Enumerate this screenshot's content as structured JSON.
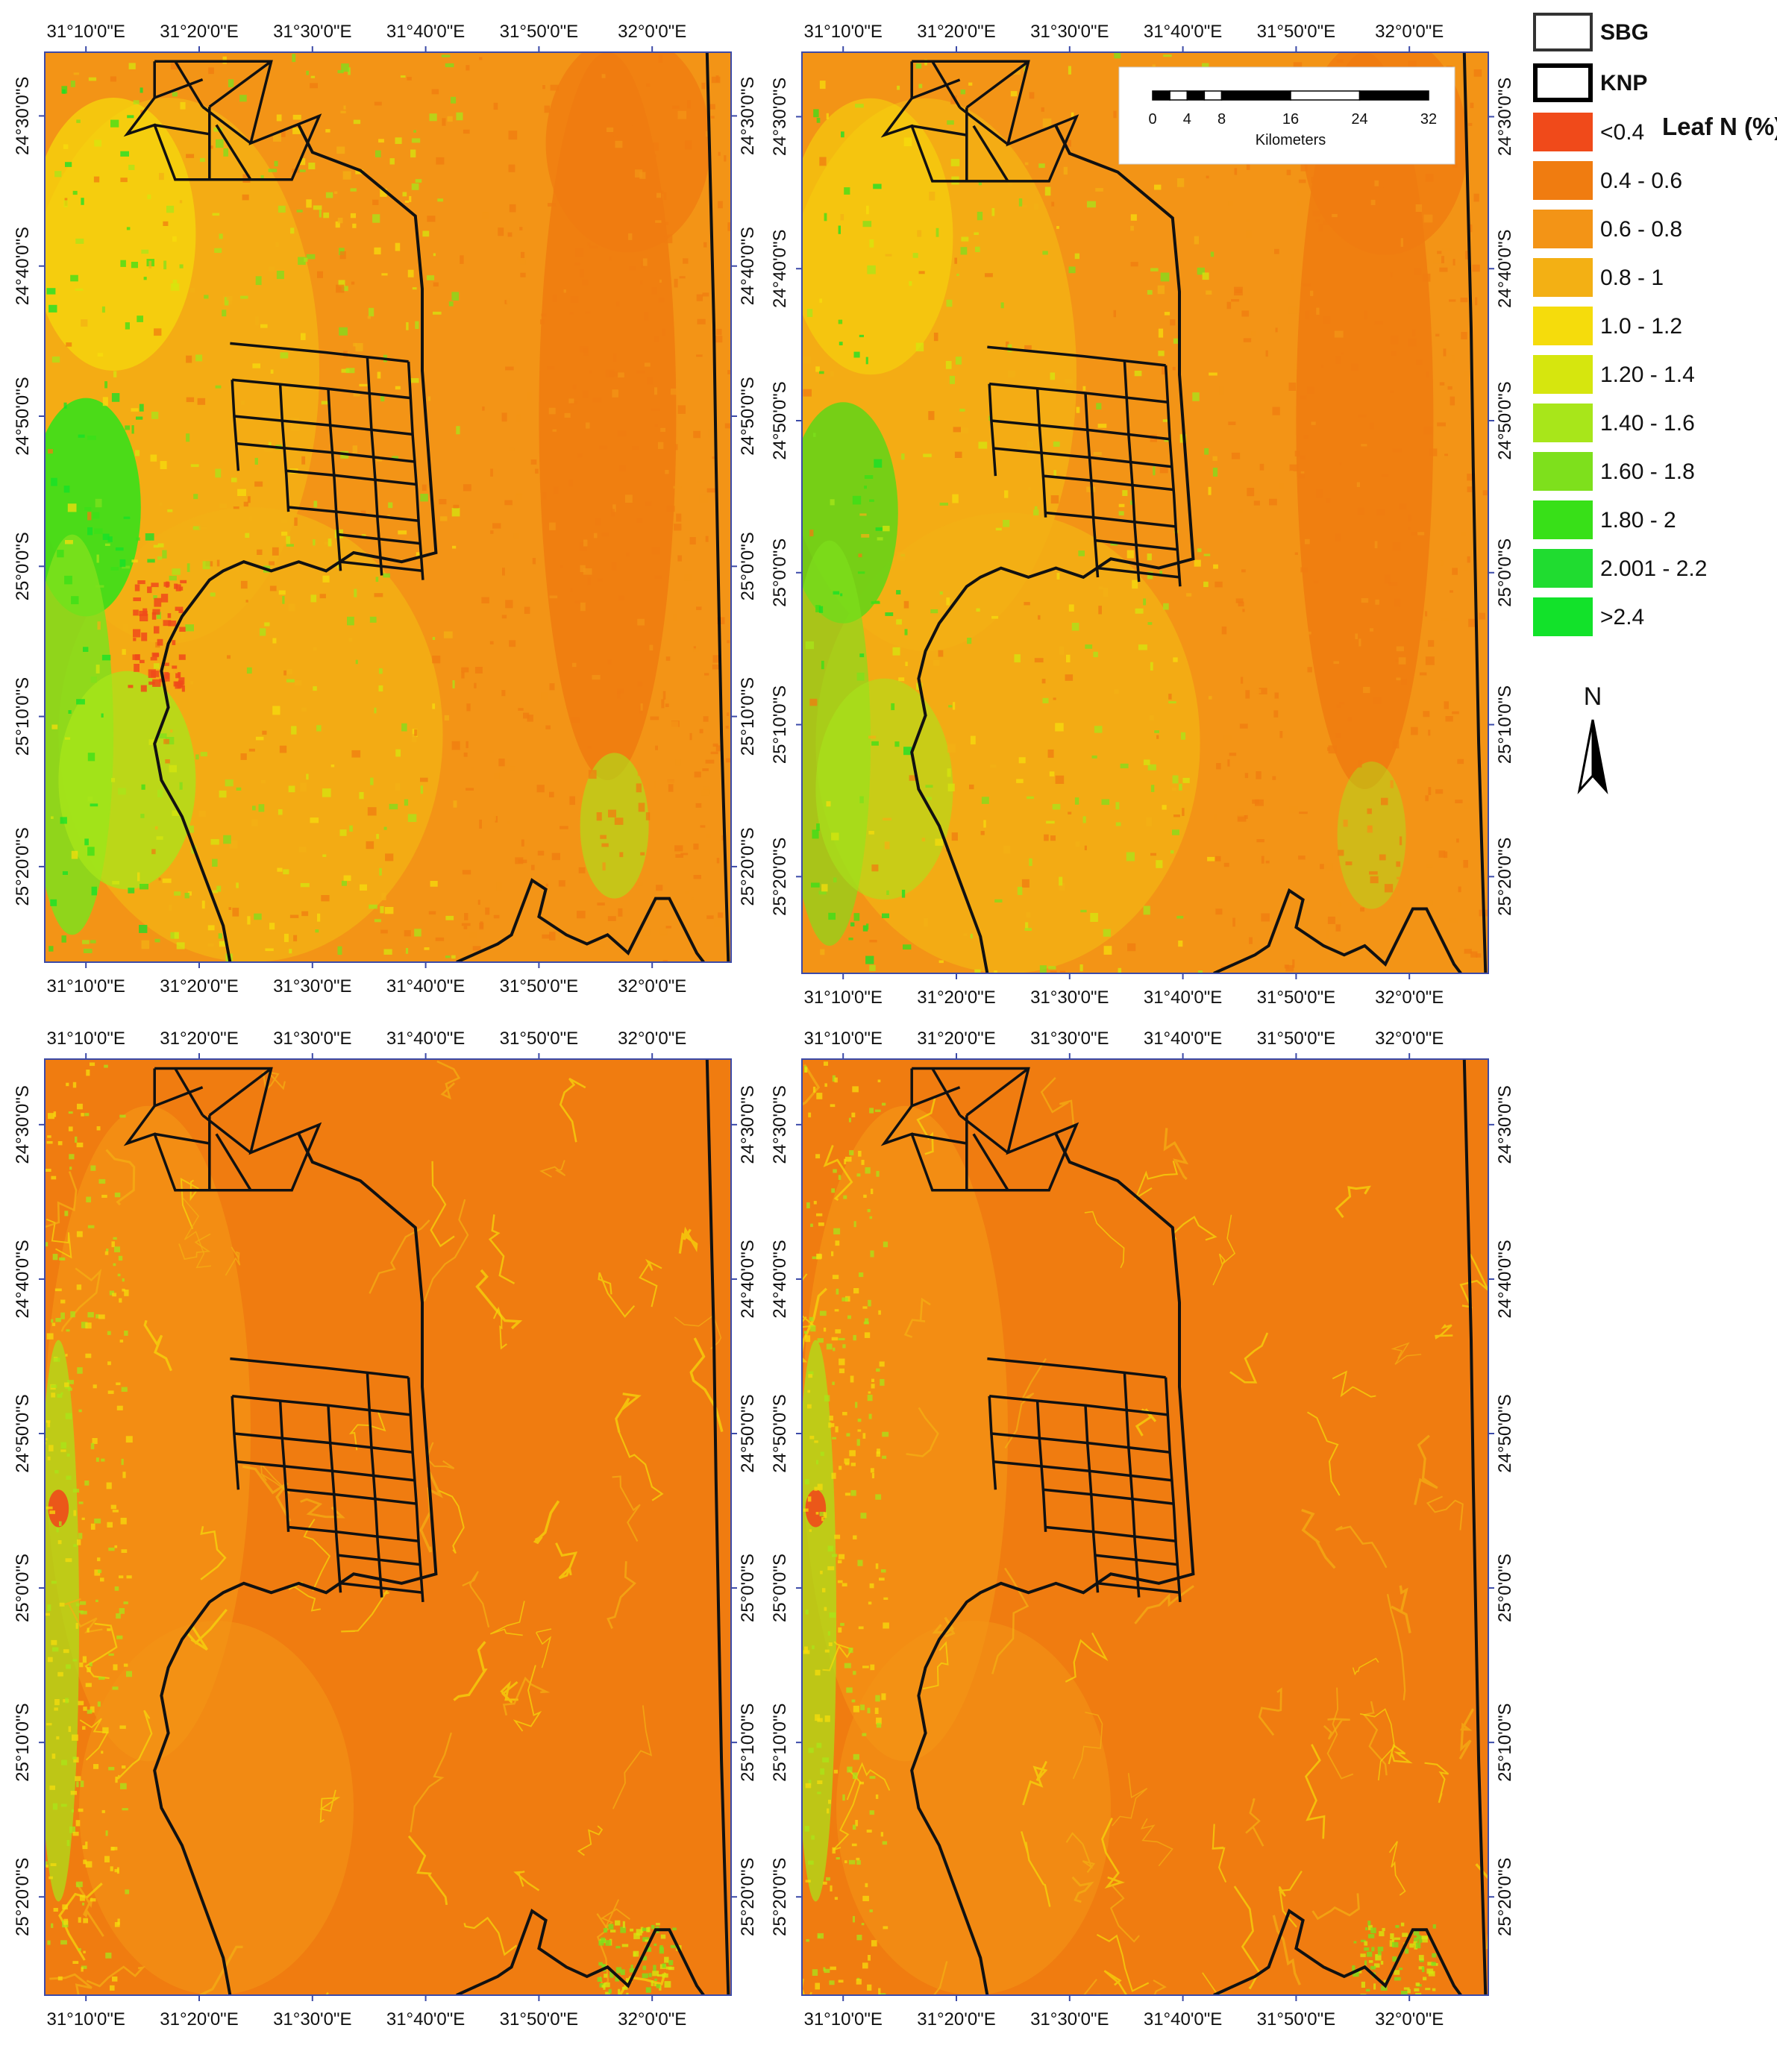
{
  "colors": {
    "bg": "#ee9a18",
    "lt04": "#f04a1a",
    "c04_06": "#f07c10",
    "c06_08": "#f39416",
    "c08_1": "#f3b014",
    "c10_12": "#f5dc0c",
    "c12_14": "#d6e60e",
    "c14_16": "#a8e61a",
    "c16_18": "#7ee01c",
    "c18_2": "#38e018",
    "c2_22": "#20dc30",
    "gt24": "#12e22a",
    "line": "#111111"
  },
  "x_ticks": [
    "31°10'0\"E",
    "31°20'0\"E",
    "31°30'0\"E",
    "31°40'0\"E",
    "31°50'0\"E",
    "32°0'0\"E"
  ],
  "y_ticks": [
    "24°30'0\"S",
    "24°40'0\"S",
    "24°50'0\"S",
    "25°0'0\"S",
    "25°10'0\"S",
    "25°20'0\"S"
  ],
  "legend": {
    "title": "Leaf N (%)",
    "boundaries": [
      {
        "label": "SBG"
      },
      {
        "label": "KNP"
      }
    ],
    "classes": [
      {
        "label": "<0.4",
        "color": "#f04a1a"
      },
      {
        "label": "0.4 - 0.6",
        "color": "#f07c10"
      },
      {
        "label": "0.6 - 0.8",
        "color": "#f39416"
      },
      {
        "label": "0.8 - 1",
        "color": "#f3b014"
      },
      {
        "label": "1.0 - 1.2",
        "color": "#f5dc0c"
      },
      {
        "label": "1.20 - 1.4",
        "color": "#d6e60e"
      },
      {
        "label": "1.40 - 1.6",
        "color": "#a8e61a"
      },
      {
        "label": "1.60 - 1.8",
        "color": "#7ee01c"
      },
      {
        "label": "1.80 - 2",
        "color": "#38e018"
      },
      {
        "label": "2.001 - 2.2",
        "color": "#20dc30"
      },
      {
        "label": ">2.4",
        "color": "#12e22a"
      }
    ]
  },
  "scalebar": {
    "ticks": [
      "0",
      "4",
      "8",
      "16",
      "24",
      "32"
    ],
    "tick_values": [
      0,
      4,
      8,
      16,
      24,
      32
    ],
    "unit": "Kilometers"
  },
  "north": {
    "label": "N"
  },
  "panels": [
    {
      "style": "wet"
    },
    {
      "style": "mid"
    },
    {
      "style": "dry"
    },
    {
      "style": "dry2"
    }
  ]
}
